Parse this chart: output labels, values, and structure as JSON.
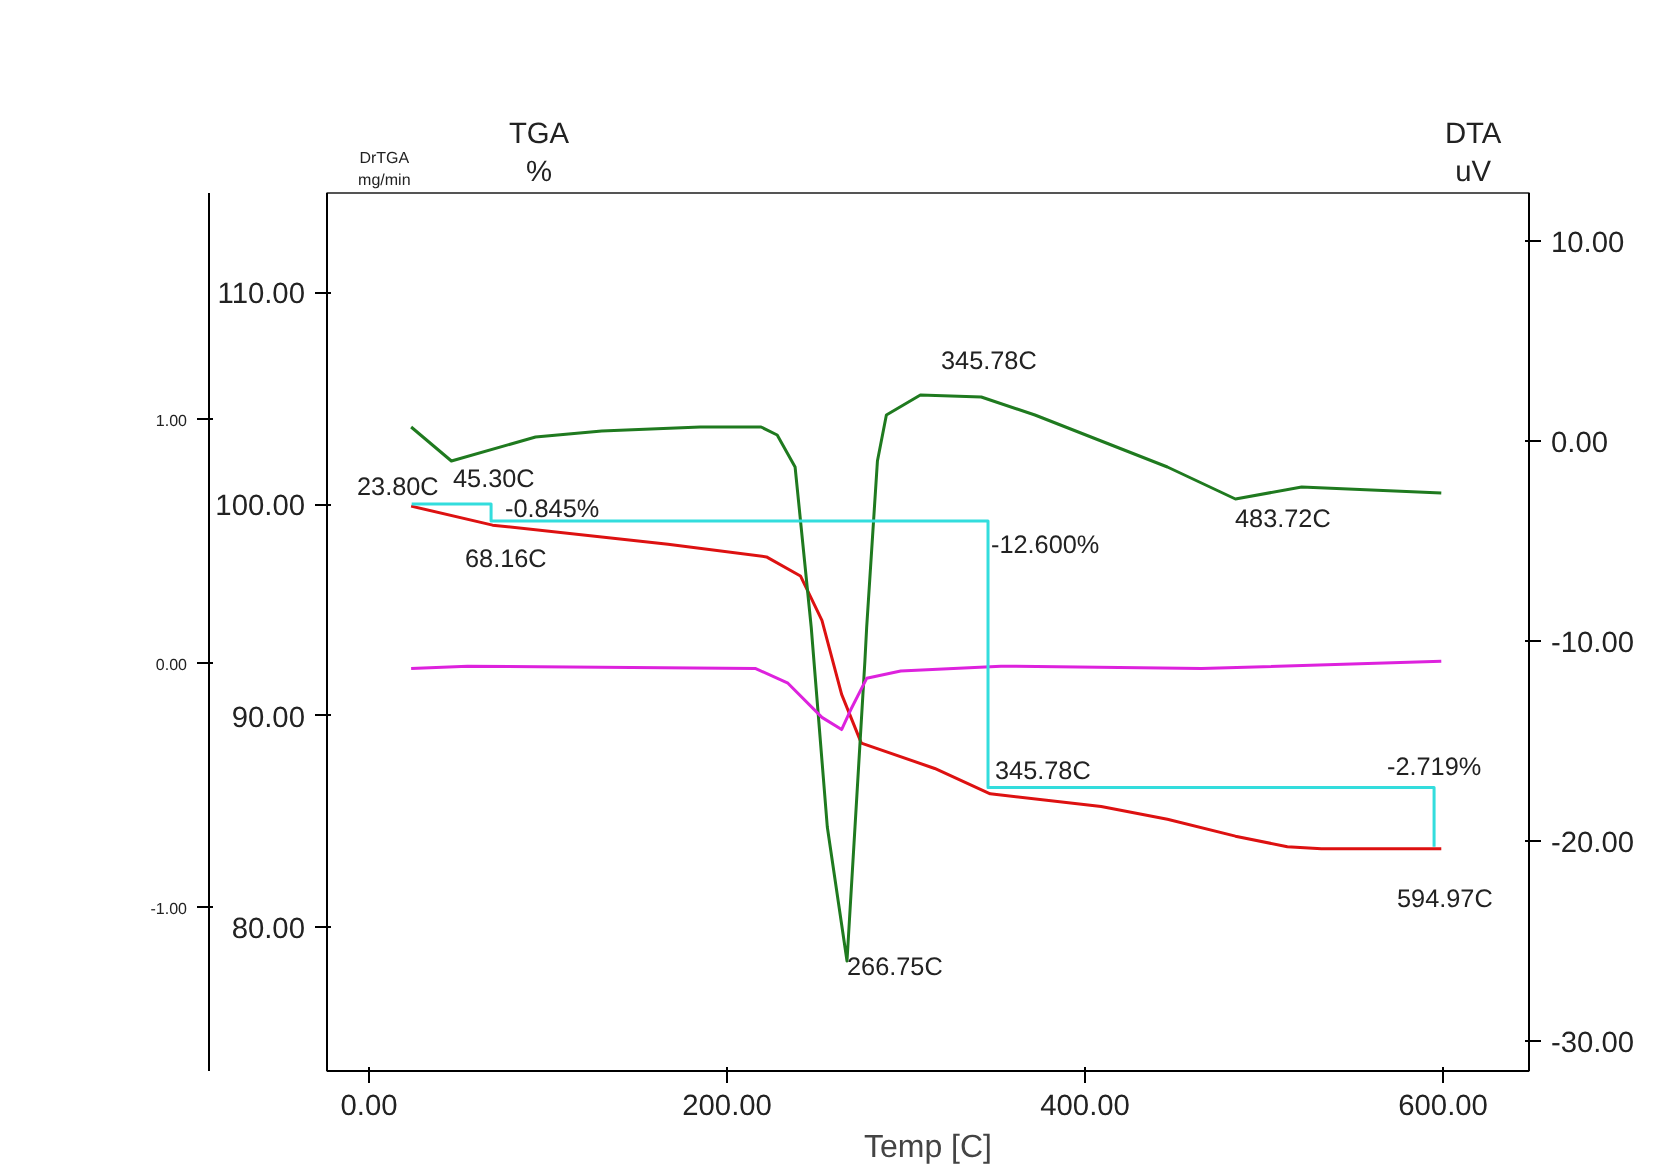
{
  "chart_data": {
    "type": "line",
    "xlabel": "Temp [C]",
    "ylabel": "TGA\n%",
    "y2label": "DTA\nuV",
    "y3label": "DrTGA\nmg/min",
    "xlim": [
      -23.5,
      648
    ],
    "xticks": [
      {
        "value": 0,
        "label": "0.00"
      },
      {
        "value": 200,
        "label": "200.00"
      },
      {
        "value": 400,
        "label": "400.00"
      },
      {
        "value": 600,
        "label": "600.00"
      }
    ],
    "ylim": [
      73.2,
      114.7
    ],
    "yticks": [
      {
        "value": 80,
        "label": "80.00"
      },
      {
        "value": 90,
        "label": "90.00"
      },
      {
        "value": 100,
        "label": "100.00"
      },
      {
        "value": 110,
        "label": "110.00"
      }
    ],
    "y2lim": [
      -31.5,
      12.4
    ],
    "y2ticks": [
      {
        "value": -30,
        "label": "-30.00"
      },
      {
        "value": -20,
        "label": "-20.00"
      },
      {
        "value": -10,
        "label": "-10.00"
      },
      {
        "value": 0,
        "label": "0.00"
      },
      {
        "value": 10,
        "label": "10.00"
      }
    ],
    "y3lim": [
      -1.67,
      1.93
    ],
    "y3ticks": [
      {
        "value": -1,
        "label": "-1.00"
      },
      {
        "value": 0,
        "label": "0.00"
      },
      {
        "value": 1,
        "label": "1.00"
      }
    ],
    "grid": false,
    "line_style": "solid",
    "marker": "none",
    "series": [
      {
        "color": "#dd1111",
        "x": [
          23.5,
          69,
          167,
          222,
          241,
          253,
          264,
          275,
          316,
          347,
          409,
          446,
          484,
          513,
          532,
          599
        ],
        "values": [
          99.9,
          99.0,
          98.1,
          97.5,
          96.6,
          94.5,
          91.0,
          88.7,
          87.5,
          86.3,
          85.7,
          85.1,
          84.3,
          83.8,
          83.7,
          83.7
        ]
      },
      {
        "color": "#1f7a1f",
        "axis": "y2",
        "x": [
          23.5,
          46,
          93,
          130,
          185,
          219,
          228,
          238,
          247,
          256,
          267,
          277,
          278,
          284,
          289,
          308,
          342,
          372,
          409,
          446,
          484,
          521,
          599
        ],
        "values": [
          0.7,
          -1.0,
          0.2,
          0.5,
          0.7,
          0.7,
          0.3,
          -1.3,
          -9.3,
          -19.3,
          -26.0,
          -11.0,
          -9.3,
          -1.0,
          1.3,
          2.3,
          2.2,
          1.3,
          0.0,
          -1.3,
          -2.9,
          -2.3,
          -2.6
        ]
      },
      {
        "color": "#dd22dd",
        "axis": "y3",
        "x": [
          23.5,
          55,
          216,
          234,
          253,
          264,
          269,
          278,
          297,
          353,
          465,
          599
        ],
        "values": [
          -0.02,
          -0.01,
          -0.02,
          -0.08,
          -0.22,
          -0.27,
          -0.19,
          -0.06,
          -0.03,
          -0.01,
          -0.02,
          0.01
        ]
      },
      {
        "color": "#33dddd",
        "x": [
          23.8,
          68.16,
          68.16,
          345.78,
          345.78,
          594.97,
          594.97
        ],
        "values": [
          100.0,
          100.0,
          99.2,
          99.2,
          86.6,
          86.6,
          83.8
        ]
      }
    ],
    "annotations": [
      "23.80C",
      "45.30C",
      "-0.845%",
      "68.16C",
      "345.78C",
      "-12.600%",
      "483.72C",
      "266.75C",
      "345.78C",
      "-2.719%",
      "594.97C"
    ]
  }
}
